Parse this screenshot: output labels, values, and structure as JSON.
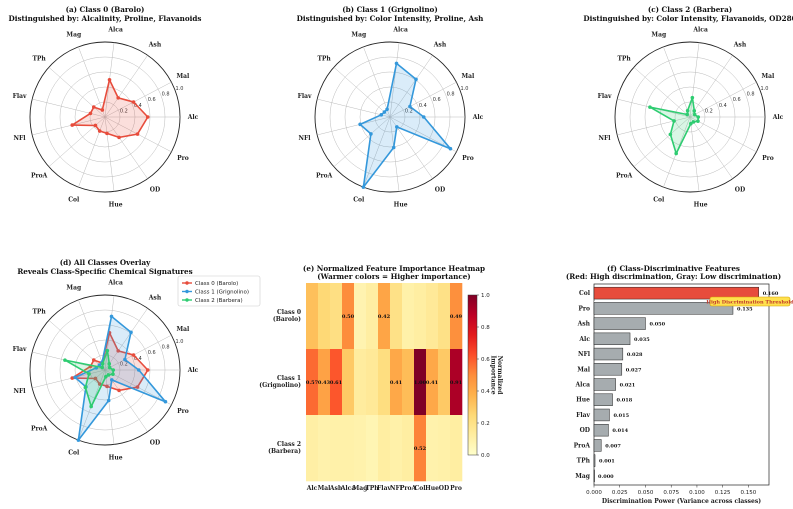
{
  "chart_data": [
    {
      "type": "radar",
      "title": "(a) Class 0 (Barolo)",
      "subtitle": "Distinguished by: Alcalinity, Proline, Flavanoids",
      "axes": [
        "Alc",
        "Mal",
        "Ash",
        "Alca",
        "Mag",
        "TPh",
        "Flav",
        "NFl",
        "ProA",
        "Col",
        "Hue",
        "OD",
        "Pro"
      ],
      "radial_ticks": [
        "0.2",
        "0.4",
        "0.6",
        "0.8",
        "1.0"
      ],
      "color": "#e74c3c",
      "values": [
        0.57,
        0.43,
        0.31,
        0.5,
        0.1,
        0.2,
        0.2,
        0.45,
        0.17,
        0.2,
        0.22,
        0.33,
        0.49
      ]
    },
    {
      "type": "radar",
      "title": "(b) Class 1 (Grignolino)",
      "subtitle": "Distinguished by: Color Intensity, Proline, Ash",
      "axes": [
        "Alc",
        "Mal",
        "Ash",
        "Alca",
        "Mag",
        "TPh",
        "Flav",
        "NFl",
        "ProA",
        "Col",
        "Hue",
        "OD",
        "Pro"
      ],
      "radial_ticks": [
        "0.2",
        "0.4",
        "0.6",
        "0.8",
        "1.0"
      ],
      "color": "#3498db",
      "values": [
        0.45,
        0.3,
        0.61,
        0.72,
        0.11,
        0.1,
        0.12,
        0.41,
        0.34,
        1.0,
        0.41,
        0.16,
        0.91
      ]
    },
    {
      "type": "radar",
      "title": "(c) Class 2 (Barbera)",
      "subtitle": "Distinguished by: Color Intensity, Flavanoids, OD280",
      "axes": [
        "Alc",
        "Mal",
        "Ash",
        "Alca",
        "Mag",
        "TPh",
        "Flav",
        "NFl",
        "ProA",
        "Col",
        "Hue",
        "OD",
        "Pro"
      ],
      "radial_ticks": [
        "0.2",
        "0.4",
        "0.6",
        "0.8",
        "1.0"
      ],
      "color": "#2ecc71",
      "values": [
        0.11,
        0.07,
        0.1,
        0.26,
        0.09,
        0.05,
        0.55,
        0.22,
        0.35,
        0.52,
        0.09,
        0.08,
        0.12
      ]
    },
    {
      "type": "radar",
      "title": "(d) All Classes Overlay",
      "subtitle": "Reveals Class-Specific Chemical Signatures",
      "axes": [
        "Alc",
        "Mal",
        "Ash",
        "Alca",
        "Mag",
        "TPh",
        "Flav",
        "NFl",
        "ProA",
        "Col",
        "Hue",
        "OD",
        "Pro"
      ],
      "radial_ticks": [
        "0.2",
        "0.4",
        "0.6",
        "0.8",
        "1.0"
      ],
      "series": [
        {
          "name": "Class 0 (Barolo)",
          "color": "#e74c3c",
          "values": [
            0.57,
            0.43,
            0.31,
            0.5,
            0.1,
            0.2,
            0.2,
            0.45,
            0.17,
            0.2,
            0.22,
            0.33,
            0.49
          ]
        },
        {
          "name": "Class 1 (Grignolino)",
          "color": "#3498db",
          "values": [
            0.45,
            0.3,
            0.61,
            0.72,
            0.11,
            0.1,
            0.12,
            0.41,
            0.34,
            1.0,
            0.41,
            0.16,
            0.91
          ]
        },
        {
          "name": "Class 2 (Barbera)",
          "color": "#2ecc71",
          "values": [
            0.11,
            0.07,
            0.1,
            0.26,
            0.09,
            0.05,
            0.55,
            0.22,
            0.35,
            0.52,
            0.09,
            0.08,
            0.12
          ]
        }
      ]
    },
    {
      "type": "heatmap",
      "title": "(e) Normalized Feature Importance Heatmap",
      "subtitle": "(Warmer colors = Higher importance)",
      "columns": [
        "Alc",
        "Mal",
        "Ash",
        "Alca",
        "Mag",
        "TPh",
        "Flav",
        "NFl",
        "ProA",
        "Col",
        "Hue",
        "OD",
        "Pro"
      ],
      "rows": [
        "Class 0\n(Barolo)",
        "Class 1\n(Grignolino)",
        "Class 2\n(Barbera)"
      ],
      "values": [
        [
          0.33,
          0.25,
          0.21,
          0.5,
          0.08,
          0.12,
          0.42,
          0.2,
          0.1,
          0.12,
          0.15,
          0.2,
          0.49
        ],
        [
          0.57,
          0.43,
          0.61,
          0.3,
          0.13,
          0.15,
          0.22,
          0.41,
          0.34,
          1.0,
          0.41,
          0.3,
          0.91
        ],
        [
          0.11,
          0.09,
          0.1,
          0.1,
          0.09,
          0.07,
          0.12,
          0.1,
          0.12,
          0.52,
          0.09,
          0.1,
          0.12
        ]
      ],
      "annotations": [
        {
          "row": 0,
          "col": 3,
          "text": "0.50"
        },
        {
          "row": 0,
          "col": 6,
          "text": "0.42"
        },
        {
          "row": 0,
          "col": 12,
          "text": "0.49"
        },
        {
          "row": 1,
          "col": 0,
          "text": "0.57"
        },
        {
          "row": 1,
          "col": 1,
          "text": "0.43"
        },
        {
          "row": 1,
          "col": 2,
          "text": "0.61"
        },
        {
          "row": 1,
          "col": 7,
          "text": "0.41"
        },
        {
          "row": 1,
          "col": 9,
          "text": "1.00"
        },
        {
          "row": 1,
          "col": 10,
          "text": "0.41"
        },
        {
          "row": 1,
          "col": 12,
          "text": "0.91"
        },
        {
          "row": 2,
          "col": 9,
          "text": "0.52"
        }
      ],
      "colorbar_label": "Normalized\nImportance",
      "colorbar_ticks": [
        "0.0",
        "0.2",
        "0.4",
        "0.6",
        "0.8",
        "1.0"
      ]
    },
    {
      "type": "bar",
      "orientation": "horizontal",
      "title": "(f) Class-Discriminative Features",
      "subtitle": "(Red: High discrimination, Gray: Low discrimination)",
      "categories": [
        "Col",
        "Pro",
        "Ash",
        "Alc",
        "NFl",
        "Mal",
        "Alca",
        "Hue",
        "Flav",
        "OD",
        "ProA",
        "TPh",
        "Mag"
      ],
      "values": [
        0.16,
        0.135,
        0.05,
        0.035,
        0.028,
        0.027,
        0.021,
        0.018,
        0.015,
        0.014,
        0.007,
        0.001,
        0.0
      ],
      "labels": [
        "0.160",
        "0.135",
        "0.050",
        "0.035",
        "0.028",
        "0.027",
        "0.021",
        "0.018",
        "0.015",
        "0.014",
        "0.007",
        "0.001",
        "0.000"
      ],
      "xlabel": "Discrimination Power (Variance across classes)",
      "xticks": [
        "0.000",
        "0.025",
        "0.050",
        "0.075",
        "0.100",
        "0.125",
        "0.150"
      ],
      "xlim": [
        0,
        0.17
      ],
      "threshold": 0.15,
      "threshold_label": "High Discrimination Threshold",
      "high_color": "#e74c3c",
      "low_color": "#a6acaf"
    }
  ]
}
